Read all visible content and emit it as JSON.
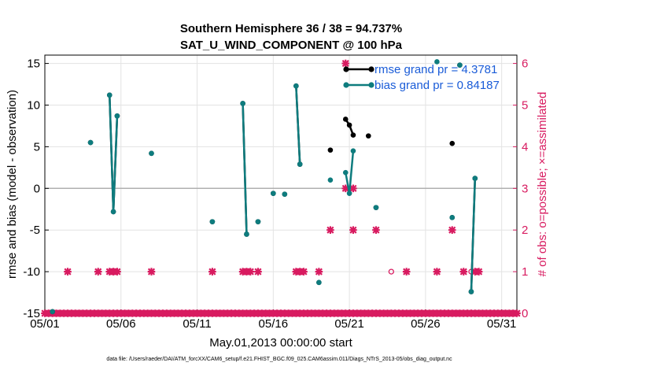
{
  "chart_data": {
    "type": "line",
    "title": "Southern Hemisphere 36 / 38 = 94.737%",
    "subtitle": "SAT_U_WIND_COMPONENT @ 100 hPa",
    "xlabel": "May.01,2013 00:00:00 start",
    "ylabel": "rmse and bias (model - observation)",
    "ylabel_right": "# of obs: o=possible; ×=assimilated",
    "footer": "data file: /Users/raeder/DAI/ATM_forcXX/CAM6_setup/f.e21.FHIST_BGC.f09_025.CAM6assim.011/Diags_NTrS_2013-05/obs_diag_output.nc",
    "xlim": [
      1,
      32
    ],
    "ylim": [
      -15,
      16
    ],
    "ylim_right": [
      0,
      6.2
    ],
    "x_ticks": [
      1,
      6,
      11,
      16,
      21,
      26,
      31
    ],
    "x_tick_labels": [
      "05/01",
      "05/06",
      "05/11",
      "05/16",
      "05/21",
      "05/26",
      "05/31"
    ],
    "y_ticks": [
      -15,
      -10,
      -5,
      0,
      5,
      10,
      15
    ],
    "y_tick_labels": [
      "-15",
      "-10",
      "-5",
      "0",
      "5",
      "10",
      "15"
    ],
    "y_ticks_right": [
      0,
      1,
      2,
      3,
      4,
      5,
      6
    ],
    "y_tick_labels_right": [
      "0",
      "1",
      "2",
      "3",
      "4",
      "5",
      "6"
    ],
    "grid": true,
    "legend_position": "top-right",
    "colors": {
      "rmse": "#000000",
      "bias": "#0e7c7e",
      "obs": "#d81b60",
      "zero": "#b0b0b0"
    },
    "series": [
      {
        "name": "rmse",
        "legend": "rmse grand pr = 4.3781",
        "segments": [
          [
            [
              1.5,
              -14.8
            ]
          ],
          [
            [
              4.0,
              5.5
            ]
          ],
          [
            [
              5.25,
              11.2
            ],
            [
              5.5,
              -2.8
            ],
            [
              5.75,
              8.7
            ]
          ],
          [
            [
              8.0,
              4.2
            ]
          ],
          [
            [
              12.0,
              -4.0
            ]
          ],
          [
            [
              14.0,
              10.2
            ],
            [
              14.25,
              -5.5
            ]
          ],
          [
            [
              15.0,
              -4.0
            ]
          ],
          [
            [
              16.0,
              -0.6
            ]
          ],
          [
            [
              16.75,
              -0.7
            ]
          ],
          [
            [
              17.5,
              12.3
            ],
            [
              17.75,
              2.9
            ]
          ],
          [
            [
              19.0,
              -11.3
            ]
          ],
          [
            [
              19.75,
              4.6
            ]
          ],
          [
            [
              20.75,
              8.3
            ],
            [
              21.0,
              7.6
            ],
            [
              21.25,
              6.4
            ]
          ],
          [
            [
              22.75,
              -2.3
            ]
          ],
          [
            [
              27.75,
              -3.5
            ]
          ],
          [
            [
              27.75,
              5.4
            ]
          ],
          [
            [
              28.25,
              14.8
            ]
          ],
          [
            [
              29.0,
              -12.4
            ],
            [
              29.25,
              1.2
            ]
          ]
        ]
      },
      {
        "name": "bias",
        "legend": "bias grand pr = 0.84187",
        "segments": [
          [
            [
              1.5,
              -14.8
            ]
          ],
          [
            [
              4.0,
              5.5
            ]
          ],
          [
            [
              5.25,
              11.2
            ],
            [
              5.5,
              -2.8
            ],
            [
              5.75,
              8.7
            ]
          ],
          [
            [
              8.0,
              4.2
            ]
          ],
          [
            [
              12.0,
              -4.0
            ]
          ],
          [
            [
              14.0,
              10.2
            ],
            [
              14.25,
              -5.5
            ]
          ],
          [
            [
              15.0,
              -4.0
            ]
          ],
          [
            [
              16.0,
              -0.6
            ]
          ],
          [
            [
              16.75,
              -0.7
            ]
          ],
          [
            [
              17.5,
              12.3
            ],
            [
              17.75,
              2.9
            ]
          ],
          [
            [
              19.0,
              -11.3
            ]
          ],
          [
            [
              19.75,
              1.0
            ]
          ],
          [
            [
              20.75,
              1.9
            ],
            [
              21.0,
              -0.6
            ],
            [
              21.25,
              4.5
            ]
          ],
          [
            [
              22.75,
              -2.3
            ]
          ],
          [
            [
              26.75,
              15.2
            ]
          ],
          [
            [
              27.75,
              -3.5
            ]
          ],
          [
            [
              28.25,
              14.8
            ]
          ],
          [
            [
              29.0,
              -12.4
            ],
            [
              29.25,
              1.2
            ]
          ]
        ]
      }
    ],
    "extra_points": [
      {
        "series": "rmse",
        "x": 22.25,
        "y": 6.3
      }
    ],
    "obs_assimilated": [
      [
        1,
        0
      ],
      [
        1.25,
        0
      ],
      [
        1.5,
        0
      ],
      [
        1.75,
        0
      ],
      [
        2,
        0
      ],
      [
        2.25,
        0
      ],
      [
        2.5,
        0
      ],
      [
        2.75,
        0
      ],
      [
        3,
        0
      ],
      [
        3.25,
        0
      ],
      [
        3.5,
        0
      ],
      [
        3.75,
        0
      ],
      [
        4,
        0
      ],
      [
        4.25,
        0
      ],
      [
        4.5,
        0
      ],
      [
        4.75,
        0
      ],
      [
        5,
        0
      ],
      [
        5.25,
        0
      ],
      [
        5.5,
        0
      ],
      [
        5.75,
        0
      ],
      [
        6,
        0
      ],
      [
        6.25,
        0
      ],
      [
        6.5,
        0
      ],
      [
        6.75,
        0
      ],
      [
        7,
        0
      ],
      [
        7.25,
        0
      ],
      [
        7.5,
        0
      ],
      [
        7.75,
        0
      ],
      [
        8,
        0
      ],
      [
        8.25,
        0
      ],
      [
        8.5,
        0
      ],
      [
        8.75,
        0
      ],
      [
        9,
        0
      ],
      [
        9.25,
        0
      ],
      [
        9.5,
        0
      ],
      [
        9.75,
        0
      ],
      [
        10,
        0
      ],
      [
        10.25,
        0
      ],
      [
        10.5,
        0
      ],
      [
        10.75,
        0
      ],
      [
        11,
        0
      ],
      [
        11.25,
        0
      ],
      [
        11.5,
        0
      ],
      [
        11.75,
        0
      ],
      [
        12,
        0
      ],
      [
        12.25,
        0
      ],
      [
        12.5,
        0
      ],
      [
        12.75,
        0
      ],
      [
        13,
        0
      ],
      [
        13.25,
        0
      ],
      [
        13.5,
        0
      ],
      [
        13.75,
        0
      ],
      [
        14,
        0
      ],
      [
        14.25,
        0
      ],
      [
        14.5,
        0
      ],
      [
        14.75,
        0
      ],
      [
        15,
        0
      ],
      [
        15.25,
        0
      ],
      [
        15.5,
        0
      ],
      [
        15.75,
        0
      ],
      [
        16,
        0
      ],
      [
        16.25,
        0
      ],
      [
        16.5,
        0
      ],
      [
        16.75,
        0
      ],
      [
        17,
        0
      ],
      [
        17.25,
        0
      ],
      [
        17.5,
        0
      ],
      [
        17.75,
        0
      ],
      [
        18,
        0
      ],
      [
        18.25,
        0
      ],
      [
        18.5,
        0
      ],
      [
        18.75,
        0
      ],
      [
        19,
        0
      ],
      [
        19.25,
        0
      ],
      [
        19.5,
        0
      ],
      [
        19.75,
        0
      ],
      [
        20,
        0
      ],
      [
        20.25,
        0
      ],
      [
        20.5,
        0
      ],
      [
        20.75,
        0
      ],
      [
        21,
        0
      ],
      [
        21.25,
        0
      ],
      [
        21.5,
        0
      ],
      [
        21.75,
        0
      ],
      [
        22,
        0
      ],
      [
        22.25,
        0
      ],
      [
        22.5,
        0
      ],
      [
        22.75,
        0
      ],
      [
        23,
        0
      ],
      [
        23.25,
        0
      ],
      [
        23.5,
        0
      ],
      [
        23.75,
        0
      ],
      [
        24,
        0
      ],
      [
        24.25,
        0
      ],
      [
        24.5,
        0
      ],
      [
        24.75,
        0
      ],
      [
        25,
        0
      ],
      [
        25.25,
        0
      ],
      [
        25.5,
        0
      ],
      [
        25.75,
        0
      ],
      [
        26,
        0
      ],
      [
        26.25,
        0
      ],
      [
        26.5,
        0
      ],
      [
        26.75,
        0
      ],
      [
        27,
        0
      ],
      [
        27.25,
        0
      ],
      [
        27.5,
        0
      ],
      [
        27.75,
        0
      ],
      [
        28,
        0
      ],
      [
        28.25,
        0
      ],
      [
        28.5,
        0
      ],
      [
        28.75,
        0
      ],
      [
        29,
        0
      ],
      [
        29.25,
        0
      ],
      [
        29.5,
        0
      ],
      [
        29.75,
        0
      ],
      [
        30,
        0
      ],
      [
        30.25,
        0
      ],
      [
        30.5,
        0
      ],
      [
        30.75,
        0
      ],
      [
        31,
        0
      ],
      [
        31.25,
        0
      ],
      [
        31.5,
        0
      ],
      [
        31.75,
        0
      ],
      [
        32,
        0
      ],
      [
        2.5,
        1
      ],
      [
        4.5,
        1
      ],
      [
        5.25,
        1
      ],
      [
        5.5,
        1
      ],
      [
        5.75,
        1
      ],
      [
        8,
        1
      ],
      [
        12,
        1
      ],
      [
        14,
        1
      ],
      [
        14.25,
        1
      ],
      [
        14.5,
        1
      ],
      [
        15,
        1
      ],
      [
        17.5,
        1
      ],
      [
        17.75,
        1
      ],
      [
        18,
        1
      ],
      [
        19,
        1
      ],
      [
        24.75,
        1
      ],
      [
        26.75,
        1
      ],
      [
        28.5,
        1
      ],
      [
        29.25,
        1
      ],
      [
        29.5,
        1
      ],
      [
        19.75,
        2
      ],
      [
        21.25,
        2
      ],
      [
        22.75,
        2
      ],
      [
        27.75,
        2
      ],
      [
        20.75,
        3
      ],
      [
        21.25,
        3
      ],
      [
        20.75,
        6
      ]
    ],
    "obs_possible": [
      [
        23.75,
        1
      ],
      [
        29.0,
        1
      ]
    ]
  }
}
